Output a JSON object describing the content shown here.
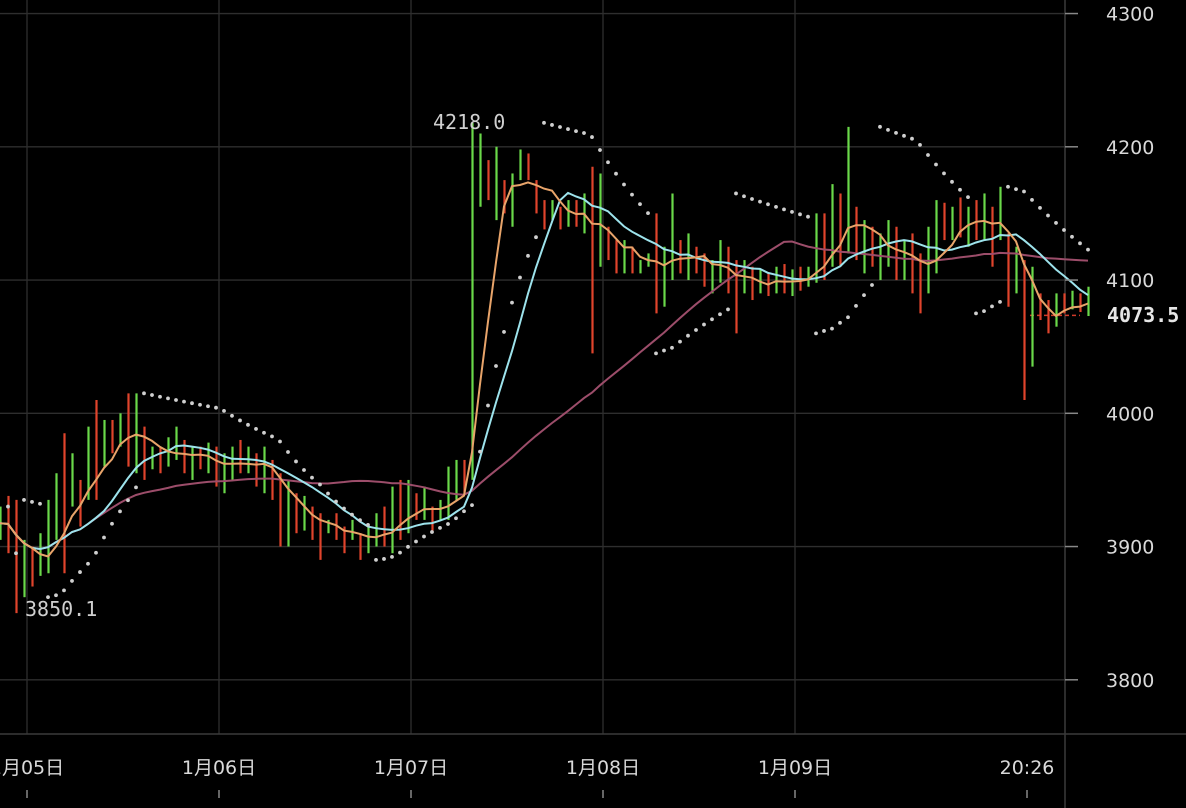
{
  "chart_data": {
    "type": "candlestick",
    "y_ticks": [
      4300,
      4200,
      4100,
      4000,
      3900,
      3800
    ],
    "x_ticks": [
      "1月05日",
      "1月06日",
      "1月07日",
      "1月08日",
      "1月09日",
      "20:26"
    ],
    "ylim": [
      3760,
      4310
    ],
    "current_price": {
      "value": 4073.5,
      "label": "4073.5"
    },
    "annotations": [
      {
        "label": "4218.0",
        "x": "1月07日 01:00",
        "y": 4218.0
      },
      {
        "label": "3850.1",
        "x": "1月05日 00:00",
        "y": 3850.1
      }
    ],
    "grid": true,
    "colors": {
      "background": "#000000",
      "up": "#6ad94a",
      "down": "#e0442c",
      "ma_fast": "#e8a46a",
      "ma_mid": "#9de3ec",
      "ma_slow": "#9c4d6a",
      "sar": "#cfcfcf",
      "price_line": "#d23a2a"
    },
    "candles_hl": [
      [
        3930,
        3905
      ],
      [
        3938,
        3895
      ],
      [
        3935,
        3850
      ],
      [
        3905,
        3862
      ],
      [
        3900,
        3870
      ],
      [
        3910,
        3878
      ],
      [
        3935,
        3880
      ],
      [
        3955,
        3905
      ],
      [
        3985,
        3880
      ],
      [
        3970,
        3930
      ],
      [
        3950,
        3915
      ],
      [
        3990,
        3935
      ],
      [
        4010,
        3935
      ],
      [
        3995,
        3960
      ],
      [
        3995,
        3970
      ],
      [
        4000,
        3975
      ],
      [
        4015,
        3960
      ],
      [
        4015,
        3955
      ],
      [
        3990,
        3950
      ],
      [
        3975,
        3958
      ],
      [
        3975,
        3955
      ],
      [
        3982,
        3960
      ],
      [
        3990,
        3965
      ],
      [
        3980,
        3955
      ],
      [
        3975,
        3950
      ],
      [
        3975,
        3958
      ],
      [
        3978,
        3955
      ],
      [
        3975,
        3945
      ],
      [
        3970,
        3940
      ],
      [
        3975,
        3950
      ],
      [
        3980,
        3955
      ],
      [
        3975,
        3955
      ],
      [
        3970,
        3945
      ],
      [
        3975,
        3940
      ],
      [
        3965,
        3935
      ],
      [
        3955,
        3900
      ],
      [
        3950,
        3900
      ],
      [
        3940,
        3910
      ],
      [
        3938,
        3912
      ],
      [
        3930,
        3905
      ],
      [
        3925,
        3890
      ],
      [
        3920,
        3910
      ],
      [
        3925,
        3905
      ],
      [
        3915,
        3895
      ],
      [
        3920,
        3905
      ],
      [
        3910,
        3890
      ],
      [
        3915,
        3895
      ],
      [
        3925,
        3900
      ],
      [
        3930,
        3900
      ],
      [
        3945,
        3895
      ],
      [
        3950,
        3905
      ],
      [
        3950,
        3910
      ],
      [
        3940,
        3920
      ],
      [
        3945,
        3920
      ],
      [
        3930,
        3912
      ],
      [
        3935,
        3920
      ],
      [
        3960,
        3920
      ],
      [
        3965,
        3935
      ],
      [
        3965,
        3940
      ],
      [
        4218,
        3950
      ],
      [
        4210,
        4155
      ],
      [
        4190,
        4160
      ],
      [
        4200,
        4145
      ],
      [
        4175,
        4150
      ],
      [
        4180,
        4140
      ],
      [
        4198,
        4175
      ],
      [
        4195,
        4175
      ],
      [
        4175,
        4150
      ],
      [
        4160,
        4138
      ],
      [
        4160,
        4145
      ],
      [
        4155,
        4138
      ],
      [
        4160,
        4140
      ],
      [
        4160,
        4140
      ],
      [
        4165,
        4135
      ],
      [
        4185,
        4045
      ],
      [
        4180,
        4110
      ],
      [
        4140,
        4115
      ],
      [
        4130,
        4105
      ],
      [
        4130,
        4105
      ],
      [
        4125,
        4105
      ],
      [
        4115,
        4105
      ],
      [
        4120,
        4110
      ],
      [
        4150,
        4075
      ],
      [
        4125,
        4080
      ],
      [
        4165,
        4100
      ],
      [
        4130,
        4105
      ],
      [
        4135,
        4100
      ],
      [
        4125,
        4105
      ],
      [
        4120,
        4095
      ],
      [
        4115,
        4090
      ],
      [
        4130,
        4098
      ],
      [
        4125,
        4090
      ],
      [
        4115,
        4060
      ],
      [
        4115,
        4090
      ],
      [
        4110,
        4085
      ],
      [
        4108,
        4090
      ],
      [
        4105,
        4088
      ],
      [
        4110,
        4090
      ],
      [
        4112,
        4090
      ],
      [
        4108,
        4088
      ],
      [
        4110,
        4092
      ],
      [
        4110,
        4095
      ],
      [
        4150,
        4098
      ],
      [
        4150,
        4100
      ],
      [
        4172,
        4110
      ],
      [
        4165,
        4110
      ],
      [
        4215,
        4120
      ],
      [
        4155,
        4115
      ],
      [
        4145,
        4105
      ],
      [
        4140,
        4110
      ],
      [
        4135,
        4100
      ],
      [
        4145,
        4110
      ],
      [
        4140,
        4100
      ],
      [
        4130,
        4100
      ],
      [
        4135,
        4090
      ],
      [
        4120,
        4075
      ],
      [
        4140,
        4090
      ],
      [
        4160,
        4105
      ],
      [
        4158,
        4130
      ],
      [
        4155,
        4130
      ],
      [
        4162,
        4132
      ],
      [
        4155,
        4125
      ],
      [
        4160,
        4130
      ],
      [
        4165,
        4130
      ],
      [
        4155,
        4110
      ],
      [
        4170,
        4130
      ],
      [
        4135,
        4080
      ],
      [
        4125,
        4090
      ],
      [
        4115,
        4010
      ],
      [
        4110,
        4035
      ],
      [
        4090,
        4070
      ],
      [
        4085,
        4060
      ],
      [
        4090,
        4065
      ],
      [
        4090,
        4075
      ],
      [
        4092,
        4078
      ],
      [
        4090,
        4076
      ],
      [
        4095,
        4073
      ]
    ]
  }
}
